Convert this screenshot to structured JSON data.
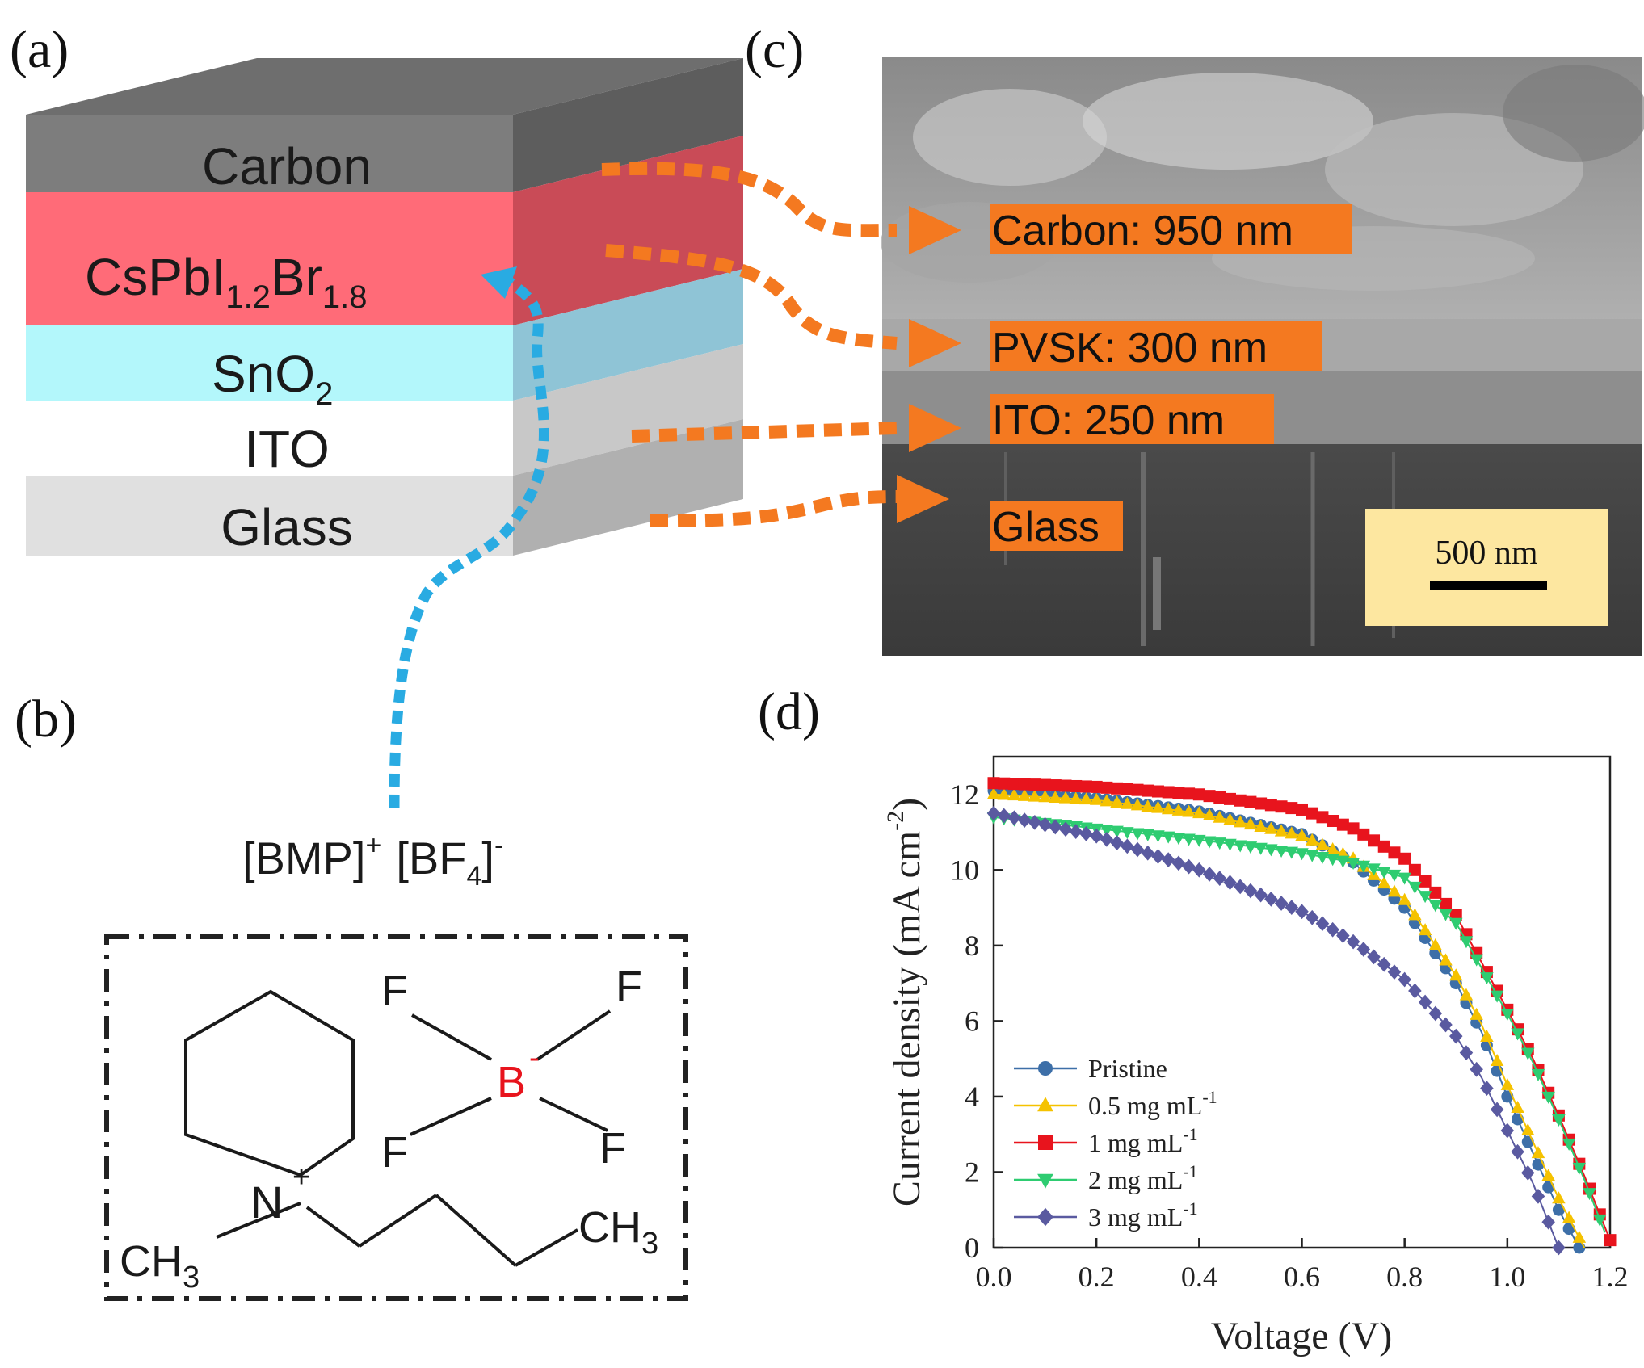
{
  "panels": {
    "a": {
      "label": "(a)",
      "layers": {
        "carbon": "Carbon",
        "pvsk_main": "CsPbI",
        "pvsk_sub1": "1.2",
        "pvsk_br": "Br",
        "pvsk_sub2": "1.8",
        "sno2_main": "SnO",
        "sno2_sub": "2",
        "ito": "ITO",
        "glass": "Glass"
      }
    },
    "b": {
      "label": "(b)",
      "formula": {
        "bmp": "[BMP]",
        "plus": "+",
        "bf": "[BF",
        "sub4": "4",
        "close": "]",
        "minus": "-"
      },
      "atoms": {
        "f1": "F",
        "f2": "F",
        "f3": "F",
        "f4": "F",
        "b": "B",
        "b_charge": "-",
        "n": "N",
        "n_charge": "+",
        "ch3_left": "CH",
        "ch3_left_sub": "3",
        "ch3_right": "CH",
        "ch3_right_sub": "3"
      }
    },
    "c": {
      "label": "(c)",
      "callouts": {
        "carbon": "Carbon: 950 nm",
        "pvsk": "PVSK: 300 nm",
        "ito": "ITO: 250 nm",
        "glass": "Glass"
      },
      "scale_bar": "500 nm"
    },
    "d": {
      "label": "(d)"
    }
  },
  "colors": {
    "orange": "#f47920",
    "blue_dots": "#29abe2",
    "carbon": "#7d7d7d",
    "pvsk": "#ff6b78",
    "sno2": "#b3f7fb",
    "glass": "#e0e0e0",
    "scale_box": "#fde7a0"
  },
  "chart_data": {
    "type": "line",
    "xlabel": "Voltage (V)",
    "ylabel_main": "Current density (mA cm",
    "ylabel_sup": "-2",
    "ylabel_close": ")",
    "xlim": [
      0.0,
      1.2
    ],
    "ylim": [
      0,
      13
    ],
    "xticks": [
      0.0,
      0.2,
      0.4,
      0.6,
      0.8,
      1.0,
      1.2
    ],
    "yticks": [
      0,
      2,
      4,
      6,
      8,
      10,
      12
    ],
    "xtick_labels": [
      "0.0",
      "0.2",
      "0.4",
      "0.6",
      "0.8",
      "1.0",
      "1.2"
    ],
    "ytick_labels": [
      "0",
      "2",
      "4",
      "6",
      "8",
      "10",
      "12"
    ],
    "legend_position": "bottom-left",
    "series": [
      {
        "name": "Pristine",
        "sup": "",
        "color": "#3d6fa8",
        "marker": "circle",
        "x": [
          0.0,
          0.2,
          0.4,
          0.6,
          0.7,
          0.8,
          0.9,
          0.95,
          1.0,
          1.05,
          1.1,
          1.14
        ],
        "y": [
          12.1,
          11.9,
          11.55,
          10.95,
          10.2,
          9.0,
          7.0,
          5.7,
          4.0,
          2.5,
          1.0,
          0.0
        ]
      },
      {
        "name": "0.5 mg mL",
        "sup": "-1",
        "color": "#f5c200",
        "marker": "triangle-up",
        "x": [
          0.0,
          0.2,
          0.4,
          0.6,
          0.7,
          0.8,
          0.9,
          0.95,
          1.0,
          1.05,
          1.1,
          1.15
        ],
        "y": [
          12.0,
          11.85,
          11.5,
          10.9,
          10.3,
          9.2,
          7.2,
          5.9,
          4.3,
          2.8,
          1.3,
          0.0
        ]
      },
      {
        "name": "1 mg mL",
        "sup": "-1",
        "color": "#e8141d",
        "marker": "square",
        "x": [
          0.0,
          0.2,
          0.4,
          0.6,
          0.7,
          0.8,
          0.9,
          1.0,
          1.05,
          1.1,
          1.15,
          1.2
        ],
        "y": [
          12.3,
          12.2,
          12.0,
          11.6,
          11.1,
          10.3,
          8.8,
          6.3,
          5.0,
          3.5,
          1.9,
          0.2
        ]
      },
      {
        "name": "2 mg mL",
        "sup": "-1",
        "color": "#2ecc71",
        "marker": "triangle-down",
        "x": [
          0.0,
          0.2,
          0.4,
          0.6,
          0.7,
          0.8,
          0.9,
          1.0,
          1.05,
          1.1,
          1.15,
          1.19
        ],
        "y": [
          11.4,
          11.1,
          10.8,
          10.45,
          10.2,
          9.8,
          8.6,
          6.2,
          4.9,
          3.4,
          1.8,
          0.4
        ]
      },
      {
        "name": "3 mg mL",
        "sup": "-1",
        "color": "#5a5aa0",
        "marker": "diamond",
        "x": [
          0.0,
          0.2,
          0.4,
          0.6,
          0.7,
          0.8,
          0.9,
          0.95,
          1.0,
          1.05,
          1.1
        ],
        "y": [
          11.5,
          10.9,
          10.0,
          8.9,
          8.1,
          7.1,
          5.6,
          4.5,
          3.1,
          1.7,
          0.0
        ]
      }
    ]
  }
}
